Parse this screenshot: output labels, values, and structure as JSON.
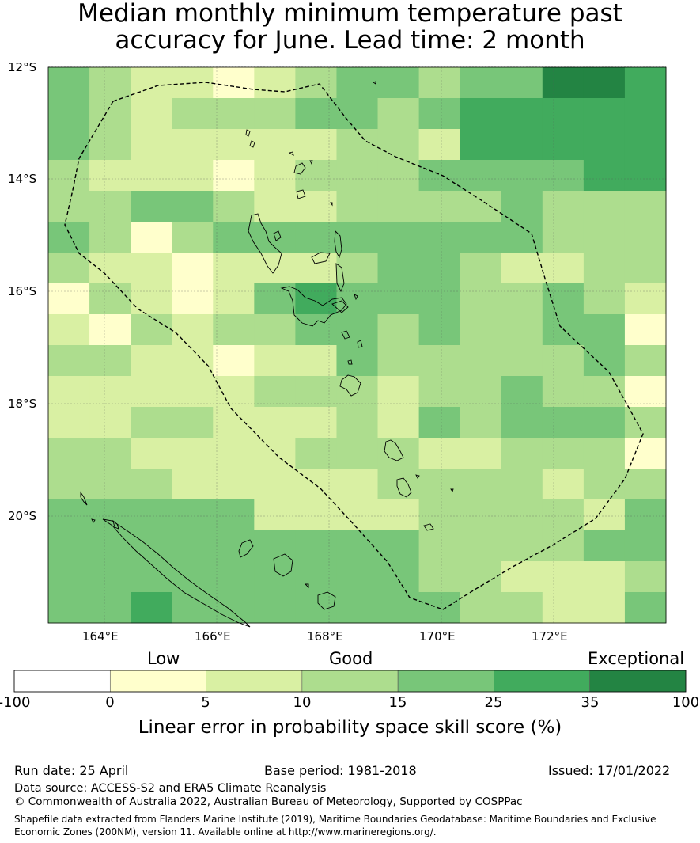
{
  "title": {
    "line1": "Median monthly minimum temperature past",
    "line2": "accuracy for June. Lead time: 2 month"
  },
  "map": {
    "lat_labels": [
      "12°S",
      "14°S",
      "16°S",
      "18°S",
      "20°S"
    ],
    "lon_labels": [
      "164°E",
      "166°E",
      "168°E",
      "170°E",
      "172°E"
    ],
    "grid_levels": [
      [
        3,
        2,
        1,
        1,
        0,
        1,
        2,
        3,
        3,
        2,
        3,
        3,
        5,
        5,
        4
      ],
      [
        3,
        2,
        1,
        2,
        2,
        2,
        3,
        3,
        2,
        3,
        4,
        4,
        4,
        4,
        4
      ],
      [
        3,
        2,
        1,
        1,
        1,
        1,
        1,
        2,
        2,
        1,
        4,
        4,
        4,
        4,
        4
      ],
      [
        2,
        1,
        1,
        1,
        0,
        1,
        2,
        2,
        2,
        3,
        3,
        3,
        3,
        4,
        4
      ],
      [
        2,
        2,
        3,
        3,
        2,
        1,
        1,
        2,
        2,
        2,
        2,
        3,
        2,
        2,
        2
      ],
      [
        3,
        2,
        0,
        2,
        3,
        3,
        3,
        3,
        3,
        3,
        3,
        3,
        2,
        2,
        2
      ],
      [
        2,
        1,
        1,
        0,
        1,
        1,
        1,
        2,
        3,
        3,
        2,
        1,
        1,
        2,
        2
      ],
      [
        0,
        2,
        1,
        0,
        1,
        3,
        4,
        3,
        3,
        3,
        2,
        2,
        3,
        2,
        1
      ],
      [
        1,
        0,
        2,
        1,
        2,
        2,
        3,
        3,
        2,
        3,
        2,
        2,
        3,
        3,
        0
      ],
      [
        2,
        2,
        1,
        1,
        0,
        1,
        1,
        3,
        2,
        2,
        2,
        2,
        2,
        3,
        2
      ],
      [
        1,
        1,
        1,
        1,
        1,
        2,
        2,
        2,
        1,
        2,
        2,
        3,
        2,
        2,
        0
      ],
      [
        1,
        1,
        2,
        2,
        1,
        1,
        1,
        2,
        1,
        3,
        2,
        3,
        3,
        3,
        2
      ],
      [
        2,
        2,
        1,
        1,
        1,
        1,
        2,
        2,
        2,
        1,
        1,
        2,
        2,
        2,
        0
      ],
      [
        2,
        2,
        2,
        1,
        1,
        1,
        1,
        1,
        2,
        2,
        2,
        2,
        1,
        2,
        2
      ],
      [
        3,
        3,
        3,
        3,
        3,
        1,
        1,
        1,
        1,
        2,
        2,
        2,
        2,
        1,
        3
      ],
      [
        3,
        3,
        3,
        3,
        3,
        3,
        3,
        3,
        3,
        2,
        2,
        2,
        2,
        3,
        3
      ],
      [
        3,
        3,
        3,
        3,
        3,
        3,
        3,
        3,
        3,
        2,
        2,
        1,
        1,
        1,
        2
      ],
      [
        3,
        3,
        4,
        3,
        3,
        3,
        3,
        3,
        3,
        3,
        2,
        2,
        1,
        1,
        3
      ]
    ]
  },
  "legend": {
    "categories": {
      "low": "Low",
      "good": "Good",
      "exceptional": "Exceptional"
    },
    "ticks": [
      "-100",
      "0",
      "5",
      "10",
      "15",
      "25",
      "35",
      "100"
    ],
    "colors": [
      "#ffffff",
      "#ffffcc",
      "#d9f0a3",
      "#addd8e",
      "#78c679",
      "#41ab5d",
      "#238443"
    ],
    "label": "Linear error in probability space skill score (%)"
  },
  "footer": {
    "run_date": "Run date: 25 April",
    "base_period": "Base period: 1981-2018",
    "issued": "Issued: 17/01/2022",
    "data_source": "Data source: ACCESS-S2 and ERA5 Climate Reanalysis",
    "copyright": "© Commonwealth of Australia 2022, Australian Bureau of Meteorology, Supported by COSPPac",
    "shapefile": "Shapefile data extracted from Flanders Marine Institute (2019), Maritime Boundaries Geodatabase: Maritime Boundaries and Exclusive Economic Zones (200NM), version 11. Available online at http://www.marineregions.org/."
  }
}
